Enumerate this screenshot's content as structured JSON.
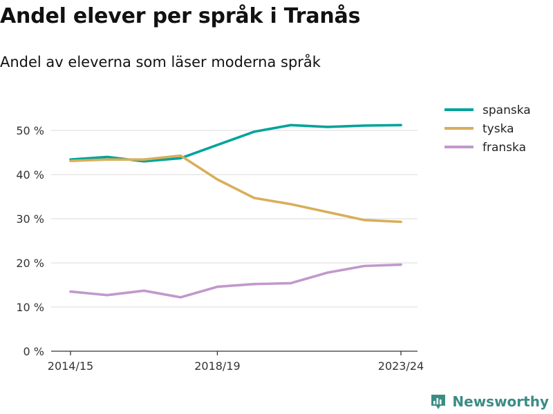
{
  "header": {
    "title": "Andel elever per språk i Tranås",
    "subtitle": "Andel av eleverna som läser moderna språk"
  },
  "brand": {
    "name": "Newsworthy",
    "color": "#3c8c86"
  },
  "chart_data": {
    "type": "line",
    "x": [
      "2014/15",
      "2015/16",
      "2016/17",
      "2017/18",
      "2018/19",
      "2019/20",
      "2020/21",
      "2021/22",
      "2022/23",
      "2023/24"
    ],
    "x_tick_labels": [
      "2014/15",
      "2018/19",
      "2023/24"
    ],
    "series": [
      {
        "name": "spanska",
        "color": "#00a39a",
        "values": [
          43.4,
          44.0,
          43.0,
          43.7,
          46.7,
          49.7,
          51.2,
          50.8,
          51.1,
          51.2
        ]
      },
      {
        "name": "tyska",
        "color": "#d9ae5a",
        "values": [
          43.1,
          43.4,
          43.4,
          44.3,
          38.9,
          34.7,
          33.3,
          31.5,
          29.7,
          29.3
        ]
      },
      {
        "name": "franska",
        "color": "#c198cc",
        "values": [
          13.5,
          12.7,
          13.7,
          12.2,
          14.6,
          15.2,
          15.4,
          17.8,
          19.3,
          19.6
        ]
      }
    ],
    "y_ticks": [
      0,
      10,
      20,
      30,
      40,
      50
    ],
    "y_tick_labels": [
      "0 %",
      "10 %",
      "20 %",
      "30 %",
      "40 %",
      "50 %"
    ],
    "ylim": [
      0,
      50
    ],
    "grid": true,
    "legend": "top-right"
  }
}
